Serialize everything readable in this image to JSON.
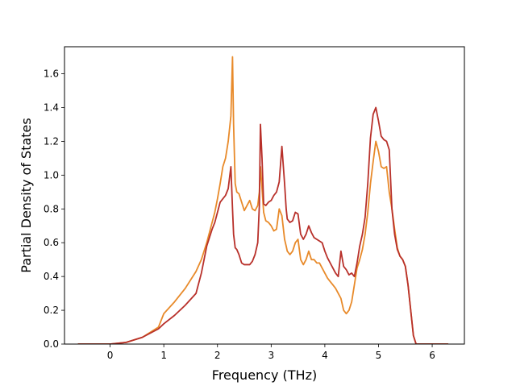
{
  "chart_data": {
    "type": "line",
    "title": "",
    "xlabel": "Frequency (THz)",
    "ylabel": "Partial Density of States",
    "xlim": [
      -0.85,
      6.6
    ],
    "ylim": [
      0,
      1.76
    ],
    "xticks": [
      0,
      1,
      2,
      3,
      4,
      5,
      6
    ],
    "yticks": [
      0.0,
      0.2,
      0.4,
      0.6,
      0.8,
      1.0,
      1.2,
      1.4,
      1.6
    ],
    "xtick_labels": [
      "0",
      "1",
      "2",
      "3",
      "4",
      "5",
      "6"
    ],
    "ytick_labels": [
      "0.0",
      "0.2",
      "0.4",
      "0.6",
      "0.8",
      "1.0",
      "1.2",
      "1.4",
      "1.6"
    ],
    "grid": false,
    "series": [
      {
        "color": "#e88a2a",
        "x": [
          -0.6,
          0.0,
          0.3,
          0.6,
          0.9,
          1.0,
          1.2,
          1.4,
          1.6,
          1.7,
          1.8,
          1.9,
          1.95,
          2.0,
          2.05,
          2.1,
          2.15,
          2.2,
          2.25,
          2.28,
          2.3,
          2.33,
          2.36,
          2.4,
          2.45,
          2.5,
          2.55,
          2.6,
          2.65,
          2.7,
          2.75,
          2.78,
          2.8,
          2.83,
          2.86,
          2.9,
          2.95,
          3.0,
          3.05,
          3.1,
          3.15,
          3.2,
          3.25,
          3.28,
          3.3,
          3.35,
          3.4,
          3.45,
          3.5,
          3.55,
          3.6,
          3.65,
          3.7,
          3.75,
          3.8,
          3.85,
          3.9,
          3.95,
          4.0,
          4.05,
          4.1,
          4.15,
          4.2,
          4.25,
          4.3,
          4.35,
          4.4,
          4.45,
          4.5,
          4.55,
          4.6,
          4.65,
          4.7,
          4.75,
          4.8,
          4.85,
          4.9,
          4.95,
          5.0,
          5.05,
          5.1,
          5.15,
          5.2,
          5.25,
          5.3,
          5.35,
          5.4,
          5.45,
          5.5,
          5.55,
          5.6,
          5.65,
          5.7,
          6.0,
          6.3
        ],
        "y": [
          0.0,
          0.0,
          0.01,
          0.04,
          0.1,
          0.18,
          0.25,
          0.33,
          0.43,
          0.5,
          0.6,
          0.72,
          0.78,
          0.86,
          0.95,
          1.05,
          1.1,
          1.2,
          1.35,
          1.7,
          1.3,
          0.95,
          0.9,
          0.89,
          0.84,
          0.79,
          0.82,
          0.85,
          0.8,
          0.79,
          0.82,
          0.9,
          1.05,
          0.92,
          0.78,
          0.73,
          0.72,
          0.7,
          0.67,
          0.68,
          0.8,
          0.76,
          0.62,
          0.58,
          0.55,
          0.53,
          0.55,
          0.6,
          0.62,
          0.5,
          0.47,
          0.5,
          0.55,
          0.5,
          0.5,
          0.48,
          0.48,
          0.45,
          0.42,
          0.39,
          0.37,
          0.35,
          0.33,
          0.3,
          0.27,
          0.2,
          0.18,
          0.2,
          0.25,
          0.35,
          0.45,
          0.5,
          0.56,
          0.65,
          0.78,
          0.95,
          1.08,
          1.2,
          1.14,
          1.05,
          1.04,
          1.05,
          0.9,
          0.8,
          0.68,
          0.57,
          0.52,
          0.5,
          0.46,
          0.35,
          0.2,
          0.05,
          0.0,
          0.0,
          0.0
        ]
      },
      {
        "color": "#b8302a",
        "x": [
          -0.6,
          0.0,
          0.3,
          0.6,
          0.9,
          1.0,
          1.2,
          1.4,
          1.6,
          1.7,
          1.8,
          1.9,
          1.95,
          2.0,
          2.05,
          2.1,
          2.15,
          2.2,
          2.25,
          2.28,
          2.3,
          2.33,
          2.36,
          2.4,
          2.45,
          2.5,
          2.55,
          2.6,
          2.65,
          2.7,
          2.75,
          2.78,
          2.8,
          2.83,
          2.86,
          2.9,
          2.95,
          3.0,
          3.05,
          3.1,
          3.15,
          3.2,
          3.25,
          3.28,
          3.3,
          3.35,
          3.4,
          3.45,
          3.5,
          3.55,
          3.6,
          3.65,
          3.7,
          3.75,
          3.8,
          3.85,
          3.9,
          3.95,
          4.0,
          4.05,
          4.1,
          4.15,
          4.2,
          4.25,
          4.3,
          4.35,
          4.4,
          4.45,
          4.5,
          4.55,
          4.6,
          4.65,
          4.7,
          4.75,
          4.8,
          4.85,
          4.9,
          4.95,
          5.0,
          5.05,
          5.1,
          5.15,
          5.2,
          5.25,
          5.3,
          5.35,
          5.4,
          5.45,
          5.5,
          5.55,
          5.6,
          5.65,
          5.7,
          6.0,
          6.3
        ],
        "y": [
          0.0,
          0.0,
          0.01,
          0.04,
          0.09,
          0.12,
          0.17,
          0.23,
          0.3,
          0.42,
          0.58,
          0.68,
          0.72,
          0.78,
          0.84,
          0.86,
          0.88,
          0.92,
          1.05,
          0.8,
          0.65,
          0.57,
          0.56,
          0.53,
          0.48,
          0.47,
          0.47,
          0.47,
          0.49,
          0.53,
          0.6,
          0.82,
          1.3,
          1.1,
          0.83,
          0.82,
          0.84,
          0.85,
          0.88,
          0.9,
          0.96,
          1.17,
          0.95,
          0.8,
          0.74,
          0.72,
          0.73,
          0.78,
          0.77,
          0.65,
          0.62,
          0.65,
          0.7,
          0.66,
          0.63,
          0.62,
          0.61,
          0.6,
          0.55,
          0.51,
          0.48,
          0.45,
          0.42,
          0.4,
          0.55,
          0.46,
          0.44,
          0.41,
          0.42,
          0.4,
          0.48,
          0.58,
          0.65,
          0.75,
          0.95,
          1.22,
          1.36,
          1.4,
          1.32,
          1.23,
          1.21,
          1.2,
          1.15,
          0.8,
          0.65,
          0.56,
          0.52,
          0.5,
          0.46,
          0.35,
          0.2,
          0.05,
          0.0,
          0.0,
          0.0
        ]
      }
    ]
  }
}
